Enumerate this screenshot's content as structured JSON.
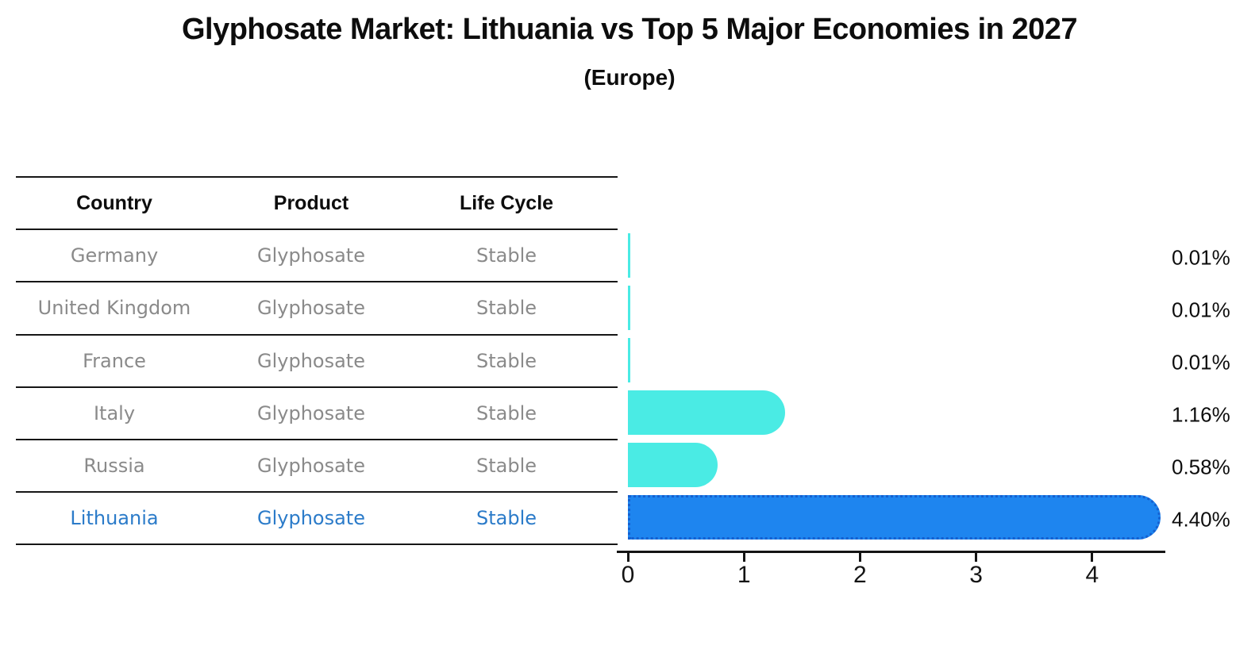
{
  "header": {
    "title": "Glyphosate Market: Lithuania vs Top 5 Major Economies in 2027",
    "subtitle": "(Europe)"
  },
  "table": {
    "columns": [
      "Country",
      "Product",
      "Life Cycle"
    ],
    "rows": [
      {
        "country": "Germany",
        "product": "Glyphosate",
        "life_cycle": "Stable",
        "highlighted": false
      },
      {
        "country": "United Kingdom",
        "product": "Glyphosate",
        "life_cycle": "Stable",
        "highlighted": false
      },
      {
        "country": "France",
        "product": "Glyphosate",
        "life_cycle": "Stable",
        "highlighted": false
      },
      {
        "country": "Italy",
        "product": "Glyphosate",
        "life_cycle": "Stable",
        "highlighted": false
      },
      {
        "country": "Russia",
        "product": "Glyphosate",
        "life_cycle": "Stable",
        "highlighted": false
      },
      {
        "country": "Lithuania",
        "product": "Glyphosate",
        "life_cycle": "Stable",
        "highlighted": true
      }
    ]
  },
  "chart_data": {
    "type": "bar",
    "orientation": "horizontal",
    "title": "Glyphosate Market: Lithuania vs Top 5 Major Economies in 2027 (Europe)",
    "categories": [
      "Germany",
      "United Kingdom",
      "France",
      "Italy",
      "Russia",
      "Lithuania"
    ],
    "values": [
      0.01,
      0.01,
      0.01,
      1.16,
      0.58,
      4.4
    ],
    "value_labels": [
      "0.01%",
      "0.01%",
      "0.01%",
      "1.16%",
      "0.58%",
      "4.40%"
    ],
    "x_ticks": [
      "0",
      "1",
      "2",
      "3",
      "4"
    ],
    "xlim": [
      0,
      4.63
    ],
    "grid": false,
    "legend": "none",
    "highlight_index": 5,
    "colors": {
      "bar_default": "#4aebe4",
      "bar_highlight": "#1e85ef",
      "bar_highlight_border": "#1560d0",
      "highlight_text": "#2b7bc9",
      "row_text": "#8a8a8a",
      "axis_text": "#141414"
    }
  }
}
